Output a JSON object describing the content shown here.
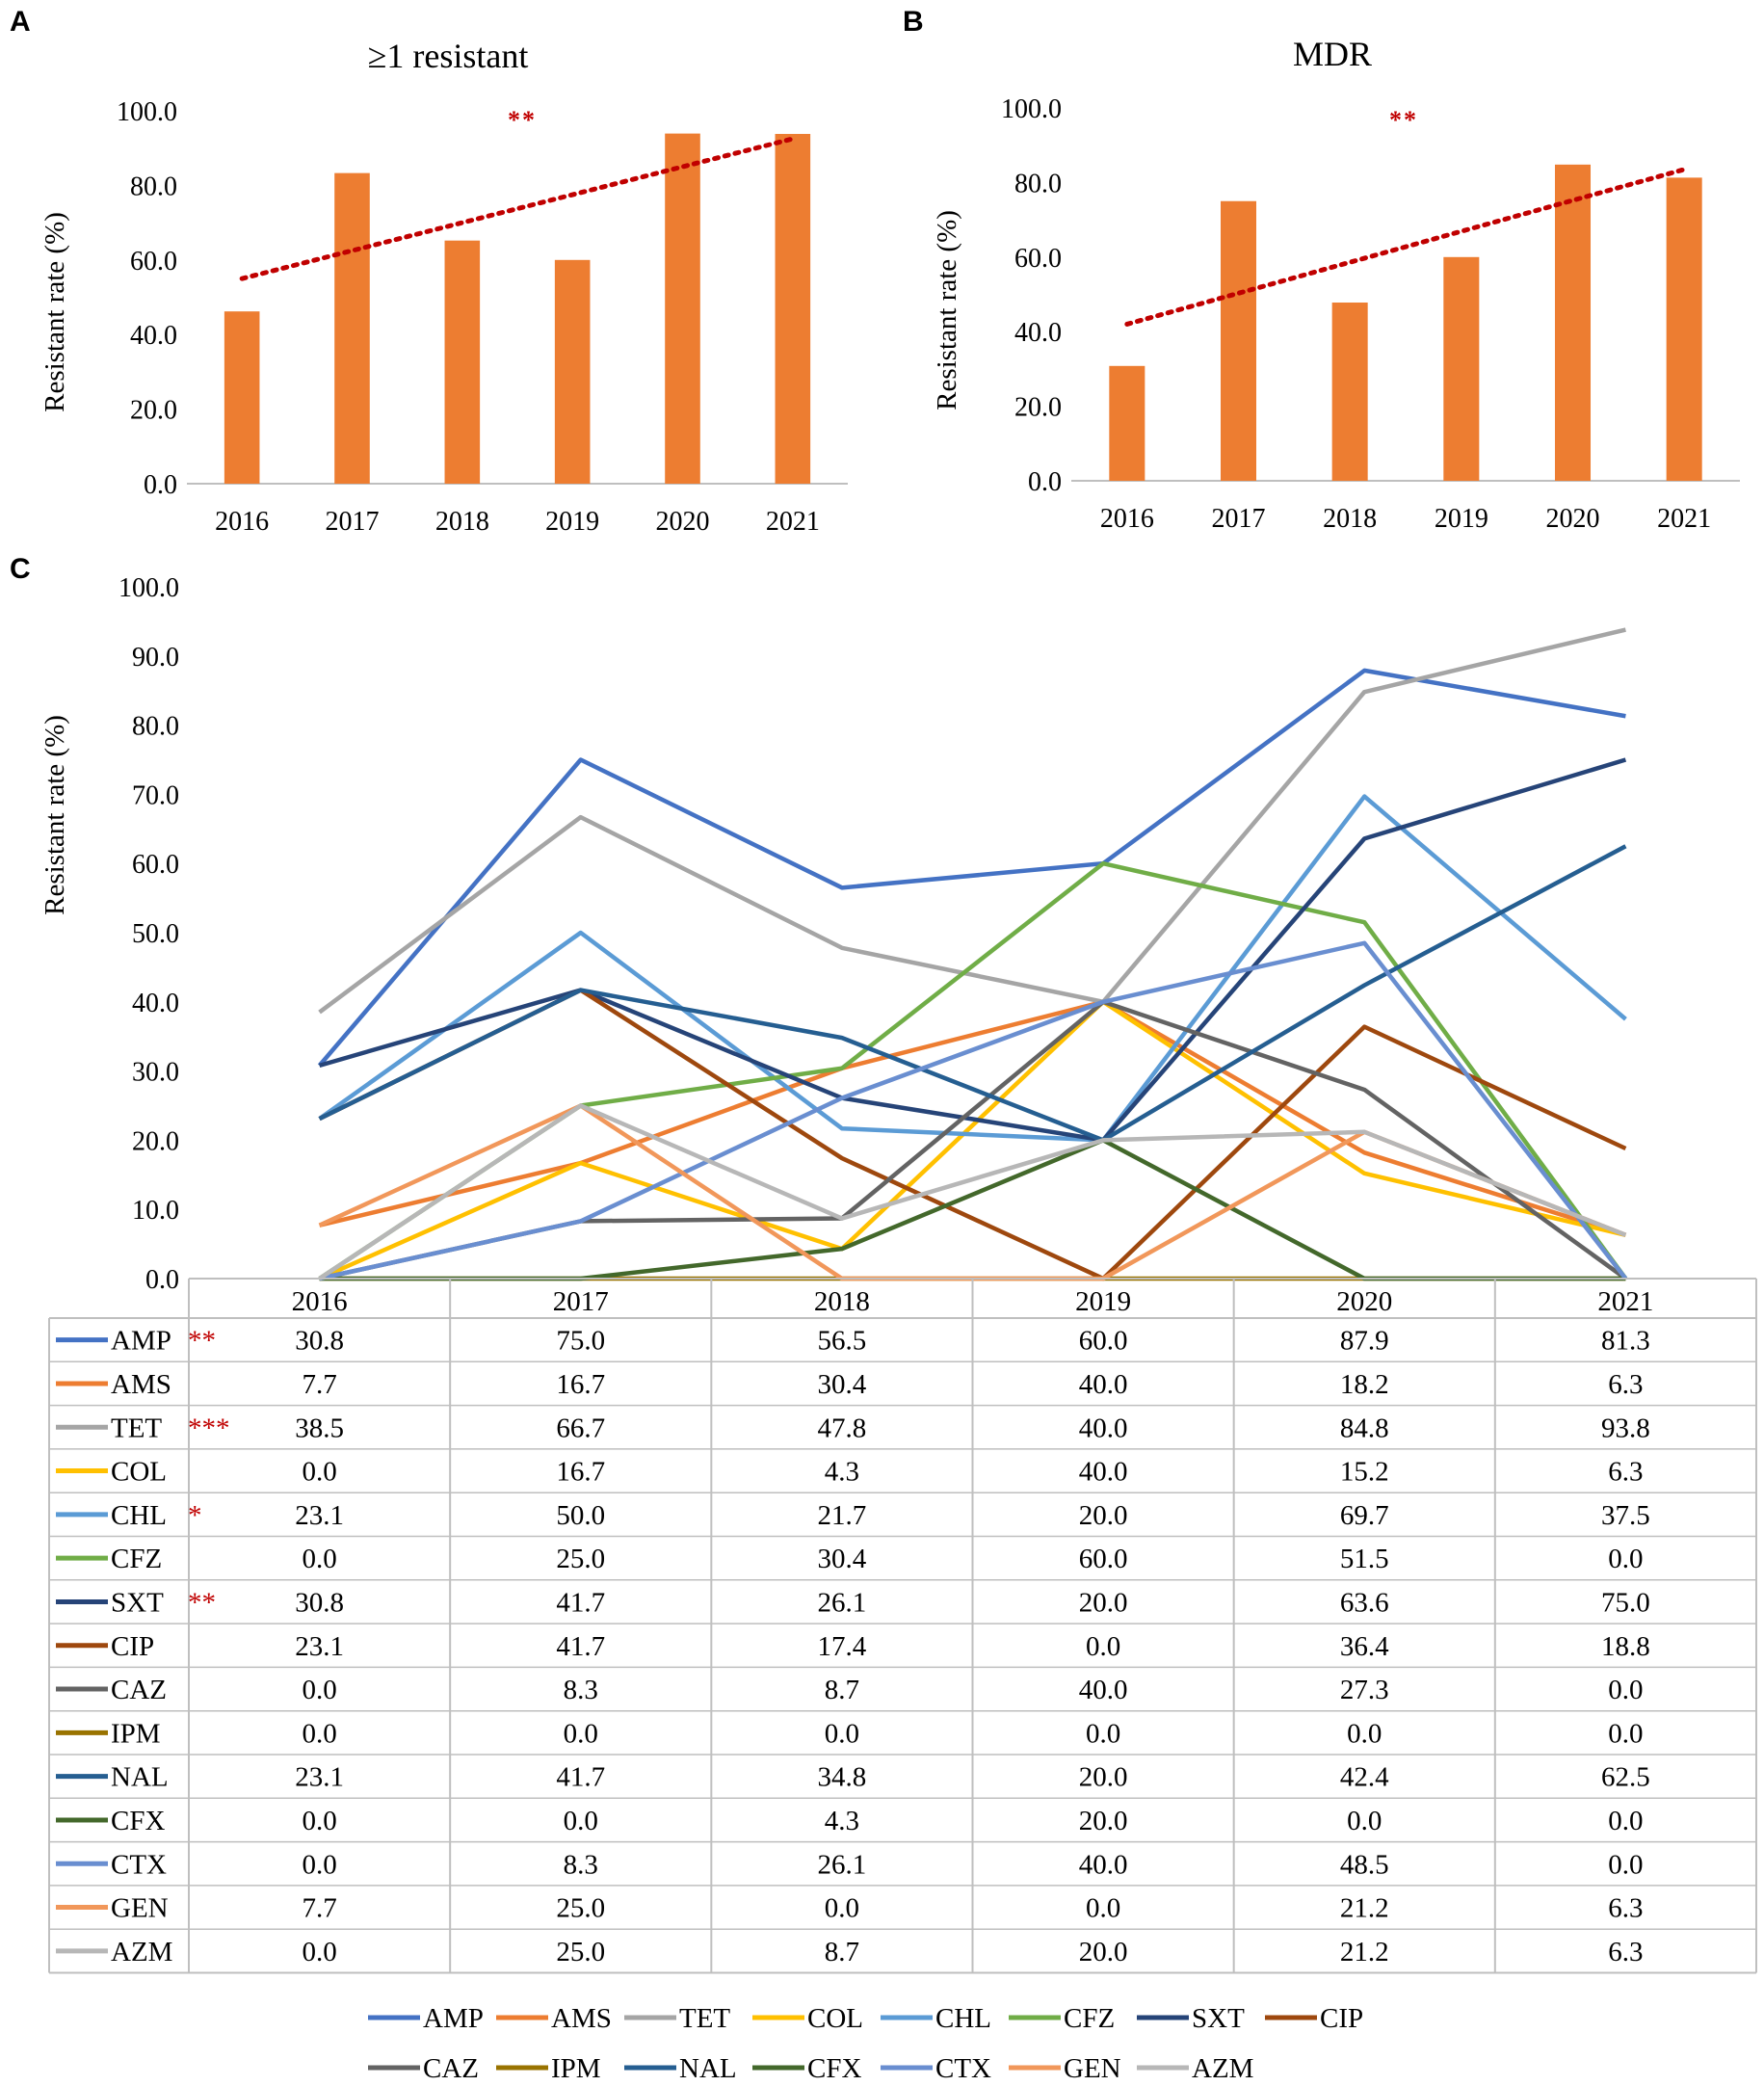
{
  "panels": {
    "A": {
      "letter": "A",
      "title": "≥1 resistant",
      "significance": "**"
    },
    "B": {
      "letter": "B",
      "title": "MDR",
      "significance": "**"
    },
    "C": {
      "letter": "C"
    }
  },
  "colors": {
    "bar": "#ed7d31",
    "trend": "#c00000",
    "grid": "#d9d9d9",
    "axis": "#bfbfbf"
  },
  "chart_data": [
    {
      "id": "A",
      "type": "bar",
      "title": "≥1 resistant",
      "ylabel": "Resistant rate (%)",
      "xlabel": "",
      "categories": [
        "2016",
        "2017",
        "2018",
        "2019",
        "2020",
        "2021"
      ],
      "values": [
        46.2,
        83.3,
        65.2,
        60.0,
        93.9,
        93.8
      ],
      "ylim": [
        0,
        100
      ],
      "yticks": [
        "0.0",
        "20.0",
        "40.0",
        "60.0",
        "80.0",
        "100.0"
      ],
      "trendline": {
        "type": "linear",
        "start": 55.0,
        "end": 92.5,
        "style": "dotted"
      },
      "annotation": "**"
    },
    {
      "id": "B",
      "type": "bar",
      "title": "MDR",
      "ylabel": "Resistant rate (%)",
      "xlabel": "",
      "categories": [
        "2016",
        "2017",
        "2018",
        "2019",
        "2020",
        "2021"
      ],
      "values": [
        30.8,
        75.0,
        47.8,
        60.0,
        84.8,
        81.3
      ],
      "ylim": [
        0,
        100
      ],
      "yticks": [
        "0.0",
        "20.0",
        "40.0",
        "60.0",
        "80.0",
        "100.0"
      ],
      "trendline": {
        "type": "linear",
        "start": 42.0,
        "end": 83.5,
        "style": "dotted"
      },
      "annotation": "**"
    },
    {
      "id": "C",
      "type": "line",
      "ylabel": "Resistant rate (%)",
      "xlabel": "",
      "categories": [
        "2016",
        "2017",
        "2018",
        "2019",
        "2020",
        "2021"
      ],
      "ylim": [
        0,
        100
      ],
      "yticks": [
        "0.0",
        "10.0",
        "20.0",
        "30.0",
        "40.0",
        "50.0",
        "60.0",
        "70.0",
        "80.0",
        "90.0",
        "100.0"
      ],
      "series": [
        {
          "name": "AMP",
          "sig": "**",
          "color": "#4472c4",
          "values": [
            "30.8",
            "75.0",
            "56.5",
            "60.0",
            "87.9",
            "81.3"
          ]
        },
        {
          "name": "AMS",
          "sig": "",
          "color": "#ed7d31",
          "values": [
            "7.7",
            "16.7",
            "30.4",
            "40.0",
            "18.2",
            "6.3"
          ]
        },
        {
          "name": "TET",
          "sig": "***",
          "color": "#a5a5a5",
          "values": [
            "38.5",
            "66.7",
            "47.8",
            "40.0",
            "84.8",
            "93.8"
          ]
        },
        {
          "name": "COL",
          "sig": "",
          "color": "#ffc000",
          "values": [
            "0.0",
            "16.7",
            "4.3",
            "40.0",
            "15.2",
            "6.3"
          ]
        },
        {
          "name": "CHL",
          "sig": "*",
          "color": "#5b9bd5",
          "values": [
            "23.1",
            "50.0",
            "21.7",
            "20.0",
            "69.7",
            "37.5"
          ]
        },
        {
          "name": "CFZ",
          "sig": "",
          "color": "#70ad47",
          "values": [
            "0.0",
            "25.0",
            "30.4",
            "60.0",
            "51.5",
            "0.0"
          ]
        },
        {
          "name": "SXT",
          "sig": "**",
          "color": "#264478",
          "values": [
            "30.8",
            "41.7",
            "26.1",
            "20.0",
            "63.6",
            "75.0"
          ]
        },
        {
          "name": "CIP",
          "sig": "",
          "color": "#9e480e",
          "values": [
            "23.1",
            "41.7",
            "17.4",
            "0.0",
            "36.4",
            "18.8"
          ]
        },
        {
          "name": "CAZ",
          "sig": "",
          "color": "#636363",
          "values": [
            "0.0",
            "8.3",
            "8.7",
            "40.0",
            "27.3",
            "0.0"
          ]
        },
        {
          "name": "IPM",
          "sig": "",
          "color": "#997300",
          "values": [
            "0.0",
            "0.0",
            "0.0",
            "0.0",
            "0.0",
            "0.0"
          ]
        },
        {
          "name": "NAL",
          "sig": "",
          "color": "#255e91",
          "values": [
            "23.1",
            "41.7",
            "34.8",
            "20.0",
            "42.4",
            "62.5"
          ]
        },
        {
          "name": "CFX",
          "sig": "",
          "color": "#43682b",
          "values": [
            "0.0",
            "0.0",
            "4.3",
            "20.0",
            "0.0",
            "0.0"
          ]
        },
        {
          "name": "CTX",
          "sig": "",
          "color": "#698ed0",
          "values": [
            "0.0",
            "8.3",
            "26.1",
            "40.0",
            "48.5",
            "0.0"
          ]
        },
        {
          "name": "GEN",
          "sig": "",
          "color": "#f1975a",
          "values": [
            "7.7",
            "25.0",
            "0.0",
            "0.0",
            "21.2",
            "6.3"
          ]
        },
        {
          "name": "AZM",
          "sig": "",
          "color": "#b7b7b7",
          "values": [
            "0.0",
            "25.0",
            "8.7",
            "20.0",
            "21.2",
            "6.3"
          ]
        }
      ]
    }
  ]
}
